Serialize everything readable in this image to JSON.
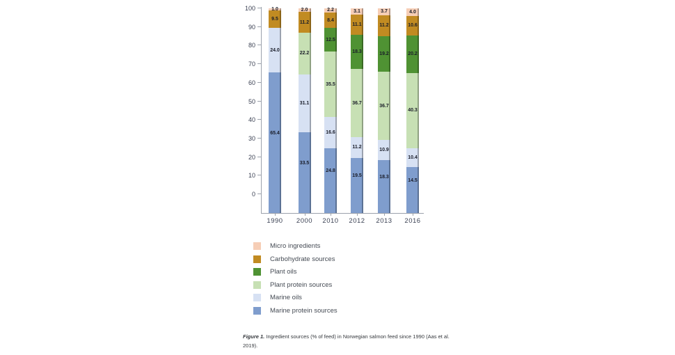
{
  "figure": {
    "caption_prefix": "Figure 1.",
    "caption_text": "Ingredient sources (% of feed) in Norwegian salmon feed since 1990 (Aas et al. 2019)."
  },
  "chart_data": {
    "type": "bar",
    "stacked": true,
    "title": "",
    "xlabel": "",
    "ylabel": "",
    "ylim": [
      0,
      100
    ],
    "yticks": [
      0,
      10,
      20,
      30,
      40,
      50,
      60,
      70,
      80,
      90,
      100
    ],
    "grid": false,
    "legend_position": "below",
    "categories": [
      "1990",
      "2000",
      "2010",
      "2012",
      "2013",
      "2016"
    ],
    "series": [
      {
        "name": "Marine protein sources",
        "color": "#7f9dcd",
        "values": [
          65.4,
          33.5,
          24.8,
          19.5,
          18.3,
          14.5
        ]
      },
      {
        "name": "Marine oils",
        "color": "#d7e1f3",
        "values": [
          24.0,
          31.1,
          16.6,
          11.2,
          10.9,
          10.4
        ]
      },
      {
        "name": "Plant protein sources",
        "color": "#c7e0b4",
        "values": [
          0,
          22.2,
          35.5,
          36.7,
          36.7,
          40.3
        ]
      },
      {
        "name": "Plant oils",
        "color": "#4f9233",
        "values": [
          0,
          0,
          12.5,
          18.3,
          19.2,
          20.2
        ]
      },
      {
        "name": "Carbohydrate sources",
        "color": "#c18b22",
        "values": [
          9.5,
          11.2,
          8.4,
          11.1,
          11.2,
          10.6
        ]
      },
      {
        "name": "Micro ingredients",
        "color": "#f6ceb6",
        "values": [
          1.0,
          2.0,
          2.2,
          3.1,
          3.7,
          4.0
        ]
      }
    ]
  }
}
